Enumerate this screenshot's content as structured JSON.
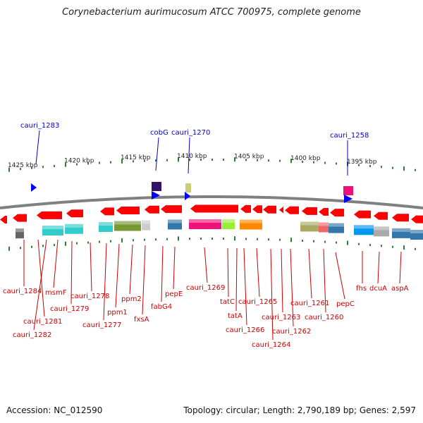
{
  "title": "Corynebacterium aurimucosum ATCC 700975, complete genome",
  "footer": {
    "accession": "Accession: NC_012590",
    "info": "Topology: circular; Length: 2,790,189 bp; Genes: 2,597"
  },
  "colors": {
    "gene_arrow": "#ff0000",
    "upper_label": "#0000cc",
    "lower_label": "#cc0000",
    "tick": "#2e7d32",
    "backbone": "#808080"
  },
  "scale_labels": [
    "1425 kbp",
    "1420 kbp",
    "1415 kbp",
    "1410 kbp",
    "1405 kbp",
    "1400 kbp",
    "1395 kbp"
  ],
  "upper_labels": [
    "cauri_1283",
    "cobG",
    "cauri_1270",
    "cauri_1258"
  ],
  "lower_labels": [
    "cauri_1284",
    "cauri_1281",
    "cauri_1282",
    "msmF",
    "cauri_1279",
    "cauri_1278",
    "cauri_1277",
    "ppm1",
    "ppm2",
    "fxsA",
    "fabG4",
    "pepE",
    "cauri_1269",
    "tatC",
    "tatA",
    "cauri_1266",
    "cauri_1265",
    "cauri_1264",
    "cauri_1263",
    "cauri_1262",
    "cauri_1261",
    "cauri_1260",
    "pepC",
    "fhs",
    "dcuA",
    "aspA"
  ],
  "feature_colors": [
    "#666666",
    "#33cccc",
    "#33cccc",
    "#33cccc",
    "#779933",
    "#cccccc",
    "#3377aa",
    "#331166",
    "#0000ff",
    "#cccc77",
    "#ee1177",
    "#99ee33",
    "#ff8800",
    "#aaaa66",
    "#ee6666",
    "#3377aa",
    "#0099ee",
    "#aaaaaa",
    "#3377aa"
  ]
}
